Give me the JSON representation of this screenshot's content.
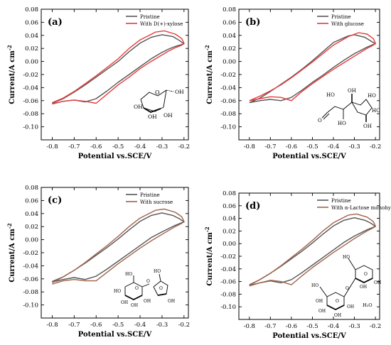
{
  "chart_data": [
    {
      "type": "line",
      "panel_label": "(a)",
      "xlabel": "Potential vs.SCE/V",
      "ylabel": "Current/A cm",
      "ylabel_sup": "-2",
      "xlim": [
        -0.85,
        -0.18
      ],
      "ylim": [
        -0.12,
        0.08
      ],
      "xticks": [
        -0.8,
        -0.7,
        -0.6,
        -0.5,
        -0.4,
        -0.3,
        -0.2
      ],
      "xtick_labels": [
        "-0.8",
        "-0.7",
        "-0.6",
        "-0.5",
        "-0.4",
        "-0.3",
        "-0.2"
      ],
      "yticks": [
        -0.1,
        -0.08,
        -0.06,
        -0.04,
        -0.02,
        0.0,
        0.02,
        0.04,
        0.06,
        0.08
      ],
      "ytick_labels": [
        "-0.10",
        "-0.08",
        "-0.06",
        "-0.04",
        "-0.02",
        "0.00",
        "0.02",
        "0.04",
        "0.06",
        "0.08"
      ],
      "legend_position": "top-right",
      "series": [
        {
          "name": "Pristine",
          "color": "#555555",
          "x": [
            -0.8,
            -0.75,
            -0.7,
            -0.65,
            -0.6,
            -0.55,
            -0.5,
            -0.45,
            -0.4,
            -0.35,
            -0.32,
            -0.3,
            -0.27,
            -0.24,
            -0.21,
            -0.2,
            -0.22,
            -0.25,
            -0.3,
            -0.35,
            -0.4,
            -0.45,
            -0.5,
            -0.55,
            -0.6,
            -0.65,
            -0.7,
            -0.75,
            -0.8
          ],
          "y": [
            -0.065,
            -0.061,
            -0.059,
            -0.062,
            -0.057,
            -0.045,
            -0.032,
            -0.02,
            -0.008,
            0.004,
            0.01,
            0.014,
            0.019,
            0.023,
            0.026,
            0.027,
            0.032,
            0.038,
            0.041,
            0.037,
            0.028,
            0.015,
            0.0,
            -0.012,
            -0.024,
            -0.036,
            -0.047,
            -0.057,
            -0.064
          ]
        },
        {
          "name": "With D(+)-xylose",
          "color": "#e83b3b",
          "x": [
            -0.8,
            -0.75,
            -0.7,
            -0.65,
            -0.6,
            -0.55,
            -0.5,
            -0.45,
            -0.4,
            -0.35,
            -0.32,
            -0.3,
            -0.27,
            -0.24,
            -0.21,
            -0.2,
            -0.21,
            -0.24,
            -0.29,
            -0.33,
            -0.4,
            -0.45,
            -0.5,
            -0.55,
            -0.6,
            -0.65,
            -0.7,
            -0.75,
            -0.8
          ],
          "y": [
            -0.065,
            -0.061,
            -0.059,
            -0.061,
            -0.064,
            -0.05,
            -0.036,
            -0.024,
            -0.011,
            0.0,
            0.006,
            0.01,
            0.016,
            0.021,
            0.025,
            0.028,
            0.035,
            0.042,
            0.047,
            0.045,
            0.033,
            0.02,
            0.004,
            -0.009,
            -0.022,
            -0.034,
            -0.046,
            -0.056,
            -0.063
          ]
        }
      ]
    },
    {
      "type": "line",
      "panel_label": "(b)",
      "xlabel": "Potential vs.SCE/V",
      "ylabel": "Current/A cm",
      "ylabel_sup": "-2",
      "xlim": [
        -0.85,
        -0.18
      ],
      "ylim": [
        -0.12,
        0.08
      ],
      "xticks": [
        -0.8,
        -0.7,
        -0.6,
        -0.5,
        -0.4,
        -0.3,
        -0.2
      ],
      "xtick_labels": [
        "-0.8",
        "-0.7",
        "-0.6",
        "-0.5",
        "-0.4",
        "-0.3",
        "-0.2"
      ],
      "yticks": [
        -0.1,
        -0.08,
        -0.06,
        -0.04,
        -0.02,
        0.0,
        0.02,
        0.04,
        0.06,
        0.08
      ],
      "ytick_labels": [
        "-0.10",
        "-0.08",
        "-0.06",
        "-0.04",
        "-0.02",
        "0.00",
        "0.02",
        "0.04",
        "0.06",
        "0.08"
      ],
      "legend_position": "top-right",
      "series": [
        {
          "name": "Pristine",
          "color": "#555555",
          "x": [
            -0.8,
            -0.75,
            -0.7,
            -0.65,
            -0.6,
            -0.55,
            -0.5,
            -0.45,
            -0.4,
            -0.35,
            -0.3,
            -0.27,
            -0.24,
            -0.21,
            -0.2,
            -0.22,
            -0.25,
            -0.3,
            -0.33,
            -0.4,
            -0.45,
            -0.5,
            -0.55,
            -0.6,
            -0.65,
            -0.7,
            -0.75,
            -0.8
          ],
          "y": [
            -0.063,
            -0.06,
            -0.058,
            -0.06,
            -0.055,
            -0.044,
            -0.032,
            -0.021,
            -0.009,
            0.002,
            0.012,
            0.017,
            0.022,
            0.026,
            0.027,
            0.031,
            0.037,
            0.041,
            0.039,
            0.029,
            0.015,
            0.001,
            -0.012,
            -0.024,
            -0.035,
            -0.046,
            -0.056,
            -0.063
          ]
        },
        {
          "name": "With glucose",
          "color": "#e83b3b",
          "x": [
            -0.8,
            -0.75,
            -0.7,
            -0.65,
            -0.6,
            -0.55,
            -0.5,
            -0.45,
            -0.4,
            -0.35,
            -0.3,
            -0.27,
            -0.24,
            -0.21,
            -0.2,
            -0.21,
            -0.24,
            -0.28,
            -0.33,
            -0.4,
            -0.45,
            -0.5,
            -0.55,
            -0.6,
            -0.65,
            -0.7,
            -0.75,
            -0.8
          ],
          "y": [
            -0.06,
            -0.057,
            -0.054,
            -0.055,
            -0.06,
            -0.046,
            -0.034,
            -0.023,
            -0.012,
            -0.002,
            0.008,
            0.014,
            0.02,
            0.025,
            0.028,
            0.035,
            0.042,
            0.044,
            0.038,
            0.025,
            0.012,
            -0.001,
            -0.013,
            -0.025,
            -0.036,
            -0.045,
            -0.053,
            -0.06
          ]
        }
      ]
    },
    {
      "type": "line",
      "panel_label": "(c)",
      "xlabel": "Potential vs.SCE/V",
      "ylabel": "Current/A cm",
      "ylabel_sup": "-2",
      "xlim": [
        -0.85,
        -0.18
      ],
      "ylim": [
        -0.12,
        0.08
      ],
      "xticks": [
        -0.8,
        -0.7,
        -0.6,
        -0.5,
        -0.4,
        -0.3,
        -0.2
      ],
      "xtick_labels": [
        "-0.8",
        "-0.7",
        "-0.6",
        "-0.5",
        "-0.4",
        "-0.3",
        "-0.2"
      ],
      "yticks": [
        -0.1,
        -0.08,
        -0.06,
        -0.04,
        -0.02,
        0.0,
        0.02,
        0.04,
        0.06,
        0.08
      ],
      "ytick_labels": [
        "-0.10",
        "-0.08",
        "-0.06",
        "-0.04",
        "-0.02",
        "0.00",
        "0.02",
        "0.04",
        "0.06",
        "0.08"
      ],
      "legend_position": "top-right",
      "series": [
        {
          "name": "Pristine",
          "color": "#555555",
          "x": [
            -0.8,
            -0.75,
            -0.7,
            -0.65,
            -0.6,
            -0.55,
            -0.5,
            -0.45,
            -0.4,
            -0.35,
            -0.3,
            -0.27,
            -0.24,
            -0.21,
            -0.2,
            -0.22,
            -0.25,
            -0.3,
            -0.35,
            -0.4,
            -0.45,
            -0.5,
            -0.55,
            -0.6,
            -0.65,
            -0.7,
            -0.75,
            -0.8
          ],
          "y": [
            -0.065,
            -0.061,
            -0.058,
            -0.061,
            -0.056,
            -0.045,
            -0.033,
            -0.021,
            -0.009,
            0.003,
            0.012,
            0.017,
            0.022,
            0.026,
            0.027,
            0.032,
            0.037,
            0.041,
            0.037,
            0.028,
            0.015,
            0.001,
            -0.012,
            -0.024,
            -0.036,
            -0.047,
            -0.057,
            -0.064
          ]
        },
        {
          "name": "With sucrose",
          "color": "#a0624a",
          "x": [
            -0.8,
            -0.75,
            -0.7,
            -0.65,
            -0.6,
            -0.55,
            -0.5,
            -0.45,
            -0.4,
            -0.35,
            -0.3,
            -0.27,
            -0.24,
            -0.21,
            -0.2,
            -0.21,
            -0.24,
            -0.29,
            -0.33,
            -0.4,
            -0.45,
            -0.5,
            -0.55,
            -0.6,
            -0.65,
            -0.7,
            -0.75,
            -0.8
          ],
          "y": [
            -0.068,
            -0.063,
            -0.061,
            -0.063,
            -0.063,
            -0.05,
            -0.037,
            -0.025,
            -0.013,
            -0.002,
            0.008,
            0.014,
            0.02,
            0.025,
            0.028,
            0.035,
            0.042,
            0.047,
            0.045,
            0.033,
            0.02,
            0.005,
            -0.009,
            -0.022,
            -0.035,
            -0.047,
            -0.057,
            -0.066
          ]
        }
      ]
    },
    {
      "type": "line",
      "panel_label": "(d)",
      "xlabel": "Potential vs.SCE/V",
      "ylabel": "Current/A cm",
      "ylabel_sup": "-2",
      "xlim": [
        -0.85,
        -0.18
      ],
      "ylim": [
        -0.12,
        0.08
      ],
      "xticks": [
        -0.8,
        -0.7,
        -0.6,
        -0.5,
        -0.4,
        -0.3,
        -0.2
      ],
      "xtick_labels": [
        "-0.8",
        "-0.7",
        "-0.6",
        "-0.5",
        "-0.4",
        "-0.3",
        "-0.2"
      ],
      "yticks": [
        -0.1,
        -0.08,
        -0.06,
        -0.04,
        -0.02,
        0.0,
        0.02,
        0.04,
        0.06,
        0.08
      ],
      "ytick_labels": [
        "-0.10",
        "-0.08",
        "-0.06",
        "-0.04",
        "-0.02",
        "0.00",
        "0.02",
        "0.04",
        "0.06",
        "0.08"
      ],
      "legend_position": "top-right",
      "series": [
        {
          "name": "Pristine",
          "color": "#555555",
          "x": [
            -0.8,
            -0.75,
            -0.7,
            -0.65,
            -0.6,
            -0.55,
            -0.5,
            -0.45,
            -0.4,
            -0.35,
            -0.3,
            -0.27,
            -0.24,
            -0.21,
            -0.2,
            -0.22,
            -0.25,
            -0.3,
            -0.35,
            -0.4,
            -0.45,
            -0.5,
            -0.55,
            -0.6,
            -0.65,
            -0.7,
            -0.75,
            -0.8
          ],
          "y": [
            -0.066,
            -0.062,
            -0.059,
            -0.062,
            -0.057,
            -0.046,
            -0.034,
            -0.022,
            -0.01,
            0.002,
            0.012,
            0.017,
            0.022,
            0.026,
            0.027,
            0.032,
            0.037,
            0.041,
            0.037,
            0.028,
            0.015,
            0.001,
            -0.012,
            -0.024,
            -0.036,
            -0.047,
            -0.057,
            -0.065
          ]
        },
        {
          "name": "With α-Lactose monohydrate",
          "color": "#a0624a",
          "x": [
            -0.8,
            -0.75,
            -0.7,
            -0.65,
            -0.6,
            -0.55,
            -0.5,
            -0.45,
            -0.4,
            -0.35,
            -0.3,
            -0.27,
            -0.24,
            -0.21,
            -0.2,
            -0.21,
            -0.24,
            -0.29,
            -0.33,
            -0.4,
            -0.45,
            -0.5,
            -0.55,
            -0.6,
            -0.65,
            -0.7,
            -0.75,
            -0.8
          ],
          "y": [
            -0.067,
            -0.062,
            -0.058,
            -0.06,
            -0.065,
            -0.051,
            -0.038,
            -0.026,
            -0.014,
            -0.003,
            0.008,
            0.014,
            0.02,
            0.025,
            0.028,
            0.035,
            0.042,
            0.047,
            0.045,
            0.033,
            0.02,
            0.005,
            -0.009,
            -0.022,
            -0.035,
            -0.047,
            -0.057,
            -0.066
          ]
        }
      ]
    }
  ],
  "structures": {
    "a_labels": [
      "O",
      "OH",
      "OH",
      "OH",
      "OH"
    ],
    "b_labels": [
      "HO",
      "HO",
      "OH",
      "HO",
      "HO",
      "OH",
      "O"
    ],
    "c_labels": [
      "HO",
      "HO",
      "O",
      "OH",
      "OH",
      "OH",
      "O",
      "O",
      "OH",
      "HO"
    ],
    "d_labels": [
      "HO",
      "O",
      "OH",
      "OH",
      "HO",
      "O",
      "OH",
      "O",
      "OH",
      "OH",
      "OH",
      "H₂O"
    ]
  }
}
